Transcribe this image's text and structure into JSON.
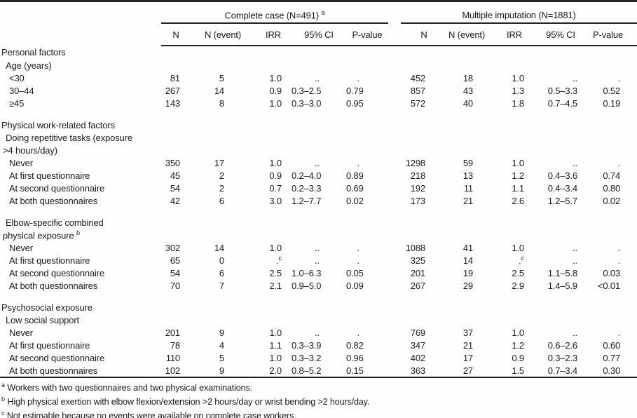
{
  "colors": {
    "text": "#1b1b1b",
    "background": "#fefefe",
    "rule": "#222222"
  },
  "table": {
    "groups": [
      {
        "label": "Complete case (N=491)",
        "sup": "a"
      },
      {
        "label": "Multiple imputation (N=1881)",
        "sup": ""
      }
    ],
    "subheaders": [
      "N",
      "N (event)",
      "IRR",
      "95% CI",
      "P-value"
    ],
    "rows": [
      {
        "type": "section",
        "label": "Personal factors"
      },
      {
        "type": "subsection",
        "label": "Age (years)"
      },
      {
        "type": "data",
        "label": "<30",
        "cc": [
          "81",
          "5",
          "1.0",
          "..",
          "."
        ],
        "mi": [
          "452",
          "18",
          "1.0",
          "..",
          "."
        ]
      },
      {
        "type": "data",
        "label": "30–44",
        "cc": [
          "267",
          "14",
          "0.9",
          "0.3–2.5",
          "0.79"
        ],
        "mi": [
          "857",
          "43",
          "1.3",
          "0.5–3.3",
          "0.52"
        ]
      },
      {
        "type": "data",
        "label": "≥45",
        "cc": [
          "143",
          "8",
          "1.0",
          "0.3–3.0",
          "0.95"
        ],
        "mi": [
          "572",
          "40",
          "1.8",
          "0.7–4.5",
          "0.19"
        ]
      },
      {
        "type": "spacer"
      },
      {
        "type": "section",
        "label": "Physical work-related factors"
      },
      {
        "type": "subsection",
        "label": "Doing repetitive tasks (exposure"
      },
      {
        "type": "subcont",
        "label": ">4 hours/day)"
      },
      {
        "type": "data",
        "label": "Never",
        "cc": [
          "350",
          "17",
          "1.0",
          "..",
          "."
        ],
        "mi": [
          "1298",
          "59",
          "1.0",
          "..",
          "."
        ]
      },
      {
        "type": "data",
        "label": "At first questionnaire",
        "cc": [
          "45",
          "2",
          "0.9",
          "0.2–4.0",
          "0.89"
        ],
        "mi": [
          "218",
          "13",
          "1.2",
          "0.4–3.6",
          "0.74"
        ]
      },
      {
        "type": "data",
        "label": "At second questionnaire",
        "cc": [
          "54",
          "2",
          "0.7",
          "0.2–3.3",
          "0.69"
        ],
        "mi": [
          "192",
          "11",
          "1.1",
          "0.4–3.4",
          "0.80"
        ]
      },
      {
        "type": "data",
        "label": "At both questionnaires",
        "cc": [
          "42",
          "6",
          "3.0",
          "1.2–7.7",
          "0.02"
        ],
        "mi": [
          "173",
          "21",
          "2.6",
          "1.2–5.7",
          "0.02"
        ]
      },
      {
        "type": "spacer"
      },
      {
        "type": "subsection",
        "label": "Elbow-specific combined"
      },
      {
        "type": "subcont",
        "label": "physical exposure ^b"
      },
      {
        "type": "data",
        "label": "Never",
        "cc": [
          "302",
          "14",
          "1.0",
          "..",
          "."
        ],
        "mi": [
          "1088",
          "41",
          "1.0",
          "..",
          "."
        ]
      },
      {
        "type": "data",
        "label": "At first questionnaire",
        "cc": [
          "65",
          "0",
          ".^c",
          "..",
          "."
        ],
        "mi": [
          "325",
          "14",
          ".^c",
          "..",
          "."
        ]
      },
      {
        "type": "data",
        "label": "At second questionnaire",
        "cc": [
          "54",
          "6",
          "2.5",
          "1.0–6.3",
          "0.05"
        ],
        "mi": [
          "201",
          "19",
          "2.5",
          "1.1–5.8",
          "0.03"
        ]
      },
      {
        "type": "data",
        "label": "At both questionnaires",
        "cc": [
          "70",
          "7",
          "2.1",
          "0.9–5.0",
          "0.09"
        ],
        "mi": [
          "267",
          "29",
          "2.9",
          "1.4–5.9",
          "<0.01"
        ]
      },
      {
        "type": "spacer"
      },
      {
        "type": "section",
        "label": "Psychosocial exposure"
      },
      {
        "type": "subsection",
        "label": "Low social support"
      },
      {
        "type": "data",
        "label": "Never",
        "cc": [
          "201",
          "9",
          "1.0",
          "..",
          "."
        ],
        "mi": [
          "769",
          "37",
          "1.0",
          "..",
          "."
        ]
      },
      {
        "type": "data",
        "label": "At first questionnaire",
        "cc": [
          "78",
          "4",
          "1.1",
          "0.3–3.9",
          "0.82"
        ],
        "mi": [
          "347",
          "21",
          "1.2",
          "0.6–2.6",
          "0.60"
        ]
      },
      {
        "type": "data",
        "label": "At second questionnaire",
        "cc": [
          "110",
          "5",
          "1.0",
          "0.3–3.2",
          "0.96"
        ],
        "mi": [
          "402",
          "17",
          "0.9",
          "0.3–2.3",
          "0.77"
        ]
      },
      {
        "type": "data",
        "label": "At both questionnaires",
        "cc": [
          "102",
          "9",
          "2.0",
          "0.8–5.2",
          "0.15"
        ],
        "mi": [
          "363",
          "27",
          "1.5",
          "0.7–3.4",
          "0.30"
        ]
      }
    ],
    "footnotes": [
      {
        "sup": "a",
        "text": "Workers with two questionnaires and two physical examinations."
      },
      {
        "sup": "b",
        "text": "High physical exertion with elbow flexion/extension >2 hours/day or wrist bending >2 hours/day."
      },
      {
        "sup": "c",
        "text": "Not estimable because no events were available on complete case workers."
      }
    ]
  }
}
